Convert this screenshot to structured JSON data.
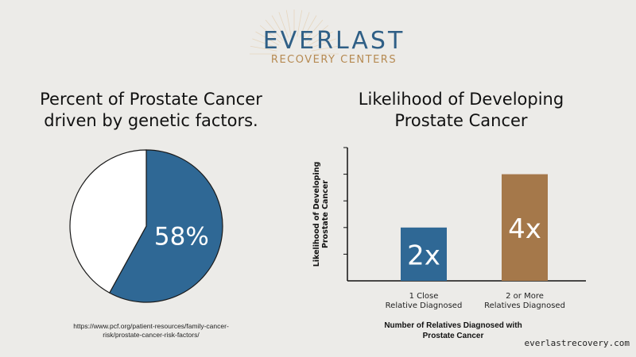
{
  "brand": {
    "name": "EVERLAST",
    "subtitle": "RECOVERY CENTERS"
  },
  "chart_data": [
    {
      "type": "pie",
      "title": "Percent of Prostate Cancer driven by genetic factors.",
      "slices": [
        {
          "value": 58,
          "label": "58%",
          "color": "#2f6895"
        },
        {
          "value": 42,
          "label": "",
          "color": "#ffffff"
        }
      ],
      "source": "https://www.pcf.org/patient-resources/family-cancer-risk/prostate-cancer-risk-factors/"
    },
    {
      "type": "bar",
      "title": "Likelihood of Developing Prostate Cancer",
      "categories": [
        "1 Close Relative Diagnosed",
        "2 or More Relatives Diagnosed"
      ],
      "values": [
        2,
        4
      ],
      "data_labels": [
        "2x",
        "4x"
      ],
      "colors": [
        "#2f6895",
        "#a5784a"
      ],
      "xlabel": "Number of Relatives Diagnosed with Prostate Cancer",
      "ylabel": "Likelihood of Developing Prostate Cancer",
      "ylim": [
        0,
        5
      ],
      "grid": false
    }
  ],
  "footer": {
    "url": "everlastrecovery.com"
  }
}
